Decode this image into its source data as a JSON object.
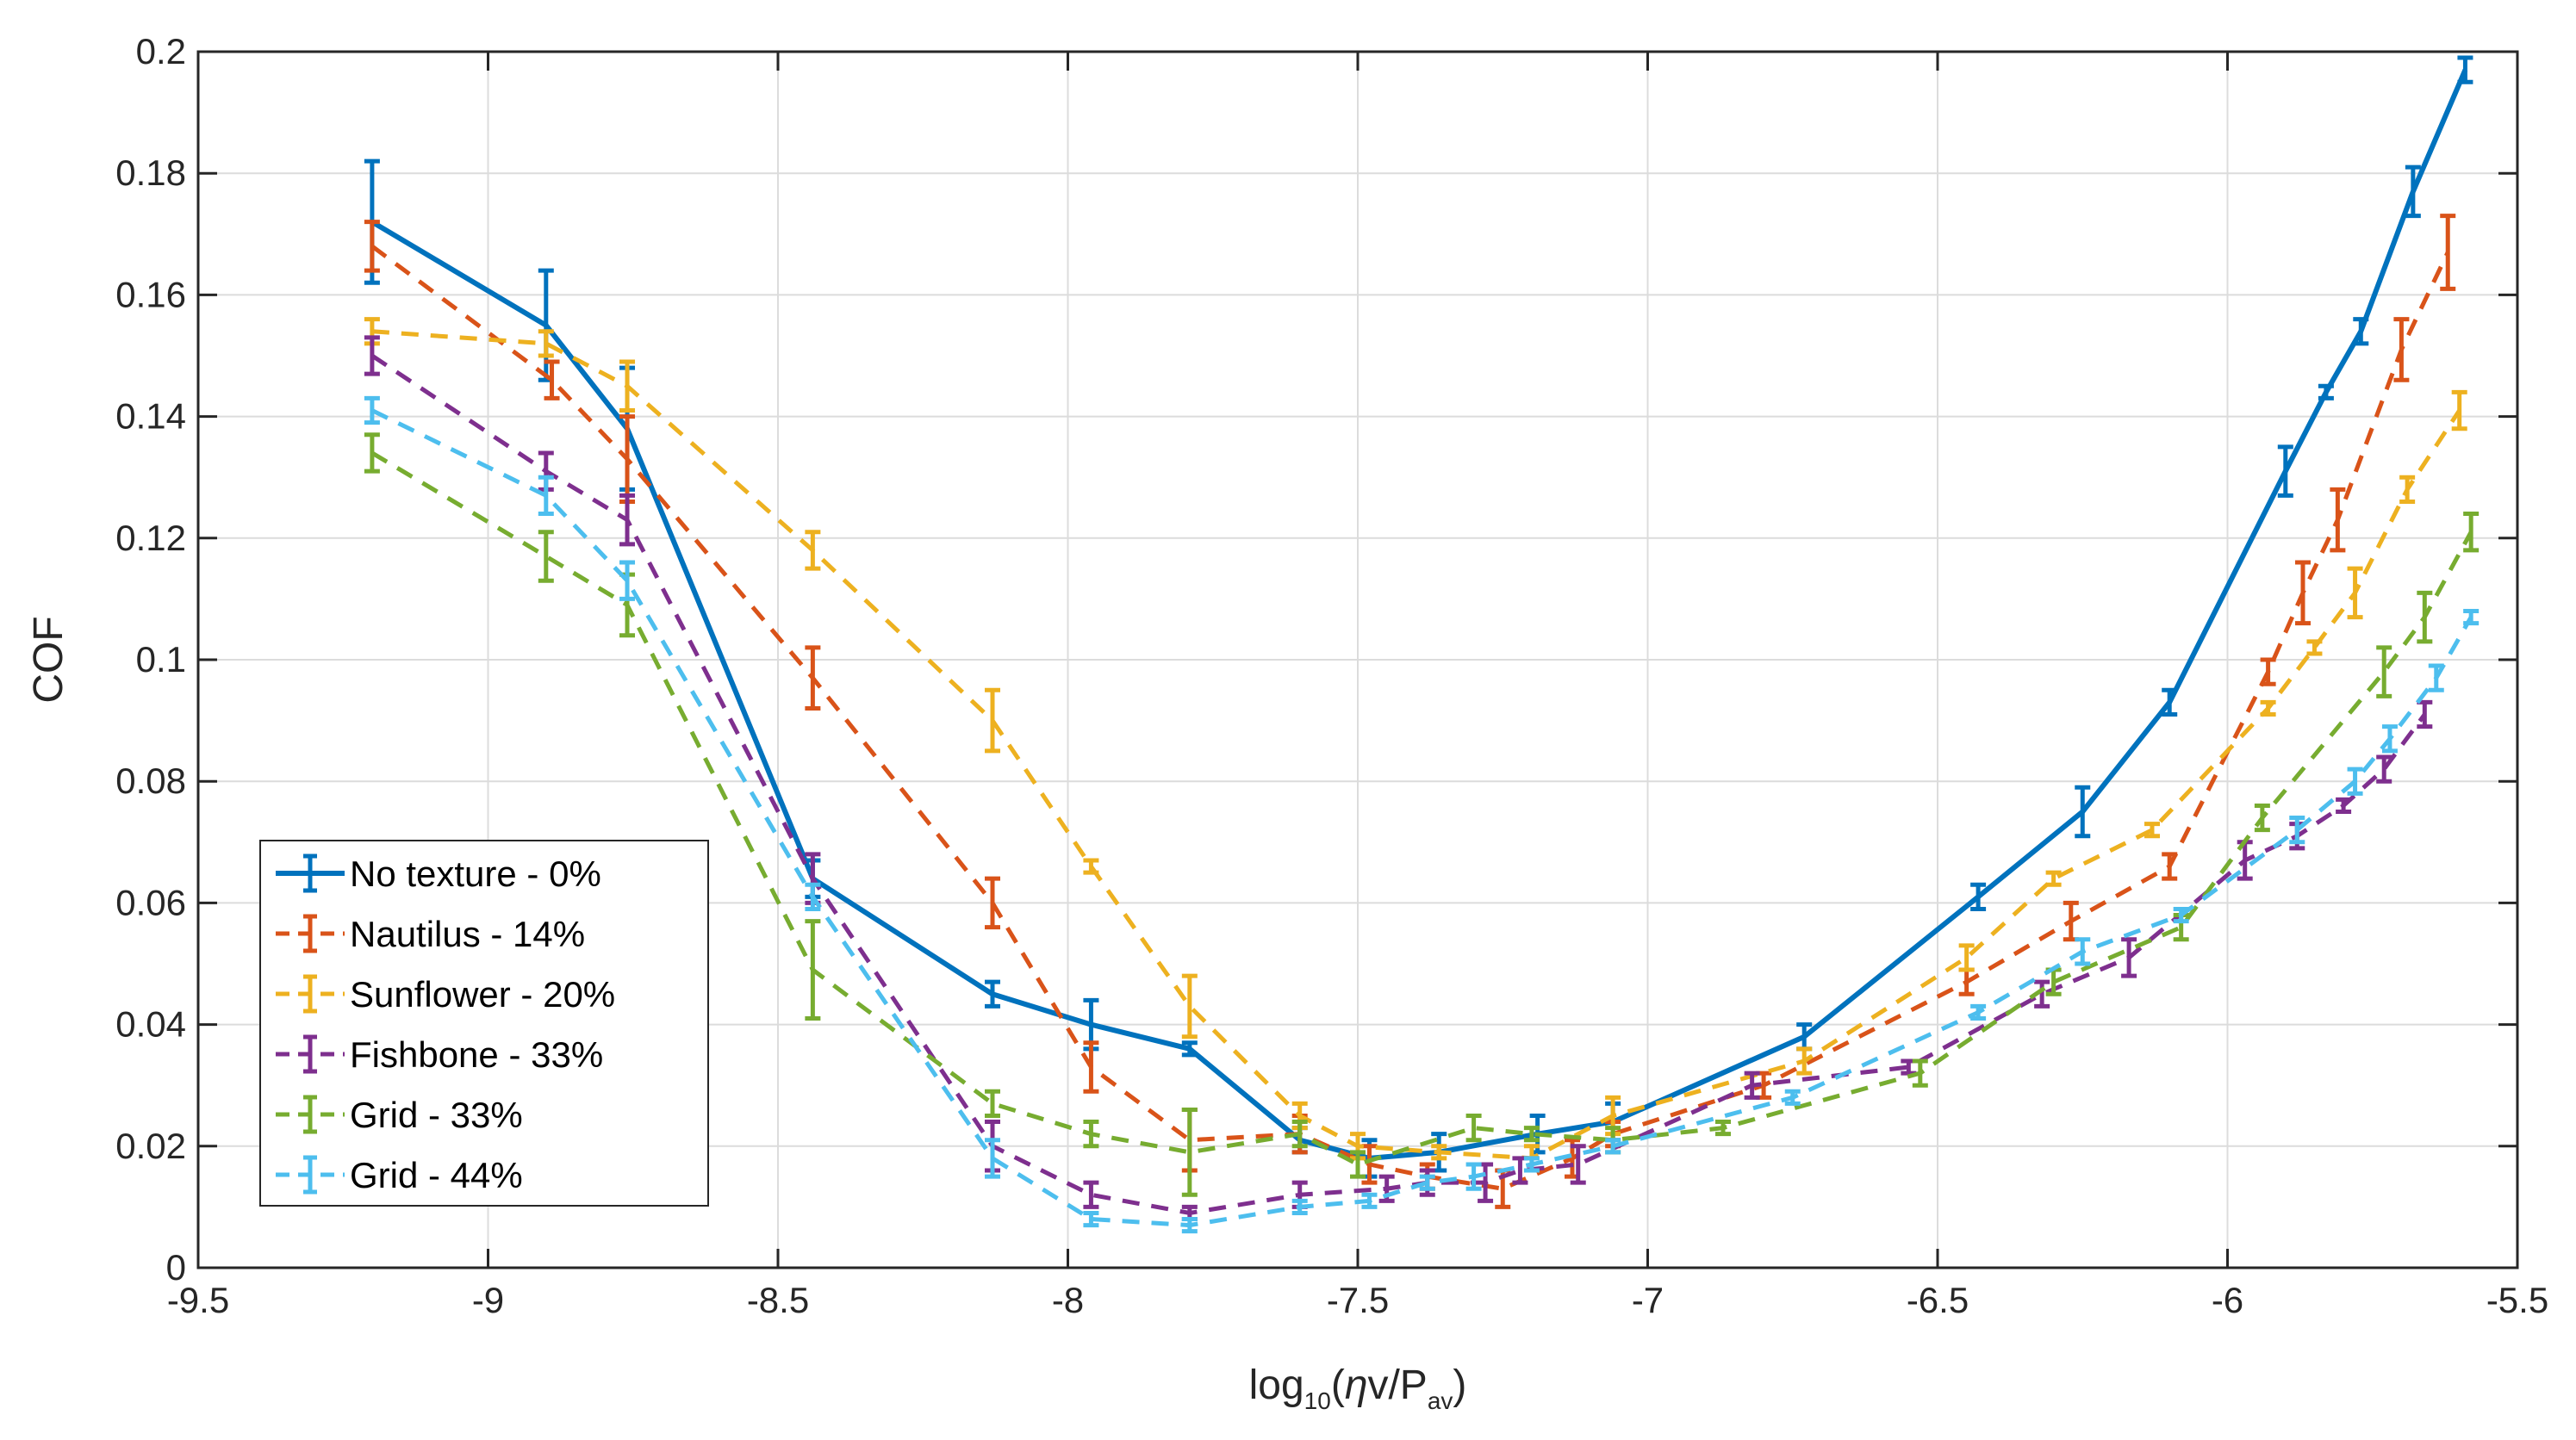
{
  "chart_data": {
    "type": "line",
    "title": "",
    "xlabel": {
      "prefix": "log",
      "sub": "10",
      "open": "(",
      "eta": "η",
      "mid": "v/P",
      "sub2": "av",
      "close": ")"
    },
    "ylabel": "COF",
    "xlim": [
      -9.5,
      -5.5
    ],
    "ylim": [
      0,
      0.2
    ],
    "xticks": [
      -9.5,
      -9,
      -8.5,
      -8,
      -7.5,
      -7,
      -6.5,
      -6,
      -5.5
    ],
    "xtick_labels": [
      "-9.5",
      "-9",
      "-8.5",
      "-8",
      "-7.5",
      "-7",
      "-6.5",
      "-6",
      "-5.5"
    ],
    "yticks": [
      0,
      0.02,
      0.04,
      0.06,
      0.08,
      0.1,
      0.12,
      0.14,
      0.16,
      0.18,
      0.2
    ],
    "ytick_labels": [
      "0",
      "0.02",
      "0.04",
      "0.06",
      "0.08",
      "0.1",
      "0.12",
      "0.14",
      "0.16",
      "0.18",
      "0.2"
    ],
    "grid": true,
    "legend_position": "lower-left",
    "series": [
      {
        "name": "No texture - 0%",
        "color": "#0072bd",
        "style": "solid",
        "points": [
          [
            -9.2,
            0.172,
            0.01
          ],
          [
            -8.9,
            0.155,
            0.009
          ],
          [
            -8.76,
            0.138,
            0.01
          ],
          [
            -8.44,
            0.064,
            0.003
          ],
          [
            -8.13,
            0.045,
            0.002
          ],
          [
            -7.96,
            0.04,
            0.004
          ],
          [
            -7.79,
            0.036,
            0.001
          ],
          [
            -7.6,
            0.021,
            0.002
          ],
          [
            -7.48,
            0.018,
            0.003
          ],
          [
            -7.36,
            0.019,
            0.003
          ],
          [
            -7.19,
            0.022,
            0.003
          ],
          [
            -7.06,
            0.024,
            0.003
          ],
          [
            -6.73,
            0.038,
            0.002
          ],
          [
            -6.43,
            0.061,
            0.002
          ],
          [
            -6.25,
            0.075,
            0.004
          ],
          [
            -6.1,
            0.093,
            0.002
          ],
          [
            -5.9,
            0.131,
            0.004
          ],
          [
            -5.83,
            0.144,
            0.001
          ],
          [
            -5.77,
            0.154,
            0.002
          ],
          [
            -5.68,
            0.177,
            0.004
          ],
          [
            -5.59,
            0.197,
            0.002
          ]
        ]
      },
      {
        "name": "Nautilus - 14%",
        "color": "#d95319",
        "style": "dashed",
        "points": [
          [
            -9.2,
            0.168,
            0.004
          ],
          [
            -8.89,
            0.146,
            0.003
          ],
          [
            -8.76,
            0.133,
            0.007
          ],
          [
            -8.44,
            0.097,
            0.005
          ],
          [
            -8.13,
            0.06,
            0.004
          ],
          [
            -7.96,
            0.033,
            0.004
          ],
          [
            -7.79,
            0.021,
            0.005
          ],
          [
            -7.6,
            0.022,
            0.003
          ],
          [
            -7.48,
            0.017,
            0.003
          ],
          [
            -7.38,
            0.015,
            0.002
          ],
          [
            -7.25,
            0.013,
            0.003
          ],
          [
            -7.13,
            0.018,
            0.003
          ],
          [
            -7.06,
            0.022,
            0.002
          ],
          [
            -6.8,
            0.03,
            0.002
          ],
          [
            -6.45,
            0.047,
            0.002
          ],
          [
            -6.27,
            0.057,
            0.003
          ],
          [
            -6.1,
            0.066,
            0.002
          ],
          [
            -5.93,
            0.098,
            0.002
          ],
          [
            -5.87,
            0.111,
            0.005
          ],
          [
            -5.81,
            0.123,
            0.005
          ],
          [
            -5.7,
            0.151,
            0.005
          ],
          [
            -5.62,
            0.167,
            0.006
          ]
        ]
      },
      {
        "name": "Sunflower - 20%",
        "color": "#edb120",
        "style": "dashed",
        "points": [
          [
            -9.2,
            0.154,
            0.002
          ],
          [
            -8.9,
            0.152,
            0.002
          ],
          [
            -8.76,
            0.145,
            0.004
          ],
          [
            -8.44,
            0.118,
            0.003
          ],
          [
            -8.13,
            0.09,
            0.005
          ],
          [
            -7.96,
            0.066,
            0.001
          ],
          [
            -7.79,
            0.043,
            0.005
          ],
          [
            -7.6,
            0.025,
            0.002
          ],
          [
            -7.5,
            0.02,
            0.002
          ],
          [
            -7.36,
            0.019,
            0.001
          ],
          [
            -7.2,
            0.018,
            0.002
          ],
          [
            -7.06,
            0.025,
            0.003
          ],
          [
            -6.73,
            0.034,
            0.002
          ],
          [
            -6.45,
            0.051,
            0.002
          ],
          [
            -6.3,
            0.064,
            0.001
          ],
          [
            -6.13,
            0.072,
            0.001
          ],
          [
            -5.93,
            0.092,
            0.001
          ],
          [
            -5.85,
            0.102,
            0.001
          ],
          [
            -5.78,
            0.111,
            0.004
          ],
          [
            -5.69,
            0.128,
            0.002
          ],
          [
            -5.6,
            0.141,
            0.003
          ]
        ]
      },
      {
        "name": "Fishbone - 33%",
        "color": "#7e2f8e",
        "style": "dashed",
        "points": [
          [
            -9.2,
            0.15,
            0.003
          ],
          [
            -8.9,
            0.131,
            0.003
          ],
          [
            -8.76,
            0.123,
            0.004
          ],
          [
            -8.44,
            0.064,
            0.004
          ],
          [
            -8.13,
            0.02,
            0.004
          ],
          [
            -7.96,
            0.012,
            0.002
          ],
          [
            -7.79,
            0.009,
            0.001
          ],
          [
            -7.6,
            0.012,
            0.002
          ],
          [
            -7.45,
            0.013,
            0.002
          ],
          [
            -7.38,
            0.014,
            0.002
          ],
          [
            -7.28,
            0.014,
            0.003
          ],
          [
            -7.22,
            0.016,
            0.002
          ],
          [
            -7.12,
            0.017,
            0.003
          ],
          [
            -6.82,
            0.03,
            0.002
          ],
          [
            -6.55,
            0.033,
            0.001
          ],
          [
            -6.32,
            0.045,
            0.002
          ],
          [
            -6.17,
            0.051,
            0.003
          ],
          [
            -5.97,
            0.067,
            0.003
          ],
          [
            -5.88,
            0.071,
            0.002
          ],
          [
            -5.8,
            0.076,
            0.001
          ],
          [
            -5.73,
            0.082,
            0.002
          ],
          [
            -5.66,
            0.091,
            0.002
          ]
        ]
      },
      {
        "name": "Grid - 33%",
        "color": "#77ac30",
        "style": "dashed",
        "points": [
          [
            -9.2,
            0.134,
            0.003
          ],
          [
            -8.9,
            0.117,
            0.004
          ],
          [
            -8.76,
            0.109,
            0.005
          ],
          [
            -8.44,
            0.049,
            0.008
          ],
          [
            -8.13,
            0.027,
            0.002
          ],
          [
            -7.96,
            0.022,
            0.002
          ],
          [
            -7.79,
            0.019,
            0.007
          ],
          [
            -7.6,
            0.022,
            0.002
          ],
          [
            -7.5,
            0.017,
            0.002
          ],
          [
            -7.3,
            0.023,
            0.002
          ],
          [
            -7.2,
            0.022,
            0.001
          ],
          [
            -7.06,
            0.021,
            0.002
          ],
          [
            -6.87,
            0.023,
            0.001
          ],
          [
            -6.53,
            0.032,
            0.002
          ],
          [
            -6.3,
            0.047,
            0.002
          ],
          [
            -6.08,
            0.056,
            0.002
          ],
          [
            -5.94,
            0.074,
            0.002
          ],
          [
            -5.73,
            0.098,
            0.004
          ],
          [
            -5.66,
            0.107,
            0.004
          ],
          [
            -5.58,
            0.121,
            0.003
          ]
        ]
      },
      {
        "name": "Grid - 44%",
        "color": "#4dbeee",
        "style": "dashed",
        "points": [
          [
            -9.2,
            0.141,
            0.002
          ],
          [
            -8.9,
            0.127,
            0.003
          ],
          [
            -8.76,
            0.113,
            0.003
          ],
          [
            -8.44,
            0.061,
            0.002
          ],
          [
            -8.13,
            0.018,
            0.003
          ],
          [
            -7.96,
            0.008,
            0.001
          ],
          [
            -7.79,
            0.007,
            0.001
          ],
          [
            -7.6,
            0.01,
            0.001
          ],
          [
            -7.48,
            0.011,
            0.001
          ],
          [
            -7.38,
            0.014,
            0.001
          ],
          [
            -7.3,
            0.015,
            0.002
          ],
          [
            -7.2,
            0.017,
            0.001
          ],
          [
            -7.06,
            0.02,
            0.001
          ],
          [
            -6.75,
            0.028,
            0.001
          ],
          [
            -6.43,
            0.042,
            0.001
          ],
          [
            -6.25,
            0.052,
            0.002
          ],
          [
            -6.08,
            0.058,
            0.001
          ],
          [
            -5.88,
            0.072,
            0.002
          ],
          [
            -5.78,
            0.08,
            0.002
          ],
          [
            -5.72,
            0.087,
            0.002
          ],
          [
            -5.64,
            0.097,
            0.002
          ],
          [
            -5.58,
            0.107,
            0.001
          ]
        ]
      }
    ]
  }
}
